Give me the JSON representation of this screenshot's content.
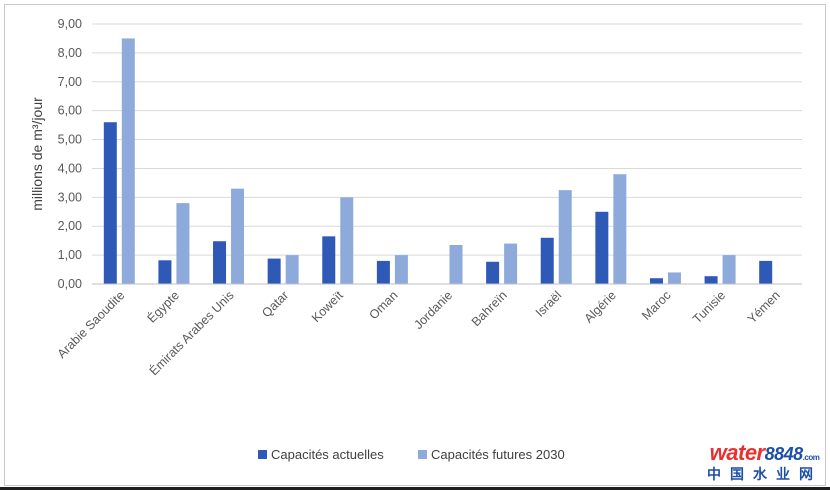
{
  "colors": {
    "series1": "#2e59b6",
    "series2": "#8eaadb",
    "gridline": "#d9d9d9",
    "axis": "#bfbfbf"
  },
  "watermark": {
    "logo_word": "water",
    "logo_number": "8848",
    "logo_suffix": ".com",
    "subtitle": "中国水业网"
  },
  "chart_data": {
    "type": "bar",
    "title": "",
    "xlabel": "",
    "ylabel": "millions de m³/jour",
    "ylim": [
      0,
      9
    ],
    "ytick_step": 1,
    "ytick_labels": [
      "0,00",
      "1,00",
      "2,00",
      "3,00",
      "4,00",
      "5,00",
      "6,00",
      "7,00",
      "8,00",
      "9,00"
    ],
    "grid": true,
    "legend_position": "bottom-center",
    "categories": [
      "Arabie Saoudite",
      "Égypte",
      "Émirats Arabes Unis",
      "Qatar",
      "Koweït",
      "Oman",
      "Jordanie",
      "Bahreïn",
      "Israël",
      "Algérie",
      "Maroc",
      "Tunisie",
      "Yémen"
    ],
    "series": [
      {
        "name": "Capacités actuelles",
        "color": "#2e59b6",
        "values": [
          5.6,
          0.82,
          1.48,
          0.88,
          1.65,
          0.8,
          0,
          0.77,
          1.6,
          2.5,
          0.2,
          0.27,
          0.8
        ]
      },
      {
        "name": "Capacités futures 2030",
        "color": "#8eaadb",
        "values": [
          8.5,
          2.8,
          3.3,
          1.0,
          3.0,
          1.0,
          1.35,
          1.4,
          3.25,
          3.8,
          0.4,
          1.0,
          null
        ]
      }
    ]
  }
}
